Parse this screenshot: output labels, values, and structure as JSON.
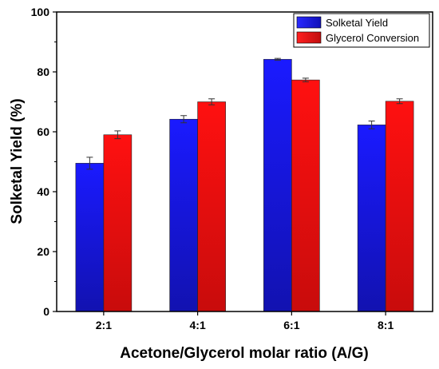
{
  "chart_data": {
    "type": "bar",
    "xlabel": "Acetone/Glycerol molar ratio (A/G)",
    "ylabel": "Solketal Yield (%)",
    "categories": [
      "2:1",
      "4:1",
      "6:1",
      "8:1"
    ],
    "ylim": [
      0,
      100
    ],
    "yticks": [
      0,
      20,
      40,
      60,
      80,
      100
    ],
    "legend_position": "top-right",
    "grid": false,
    "series": [
      {
        "name": "Solketal Yield",
        "values": [
          49.5,
          64.2,
          84.2,
          62.3
        ],
        "errors": [
          2.0,
          1.2,
          0.3,
          1.3
        ],
        "color": "#1515e6"
      },
      {
        "name": "Glycerol Conversion",
        "values": [
          59.0,
          70.0,
          77.3,
          70.2
        ],
        "errors": [
          1.3,
          1.0,
          0.6,
          0.8
        ],
        "color": "#f01010"
      }
    ]
  }
}
